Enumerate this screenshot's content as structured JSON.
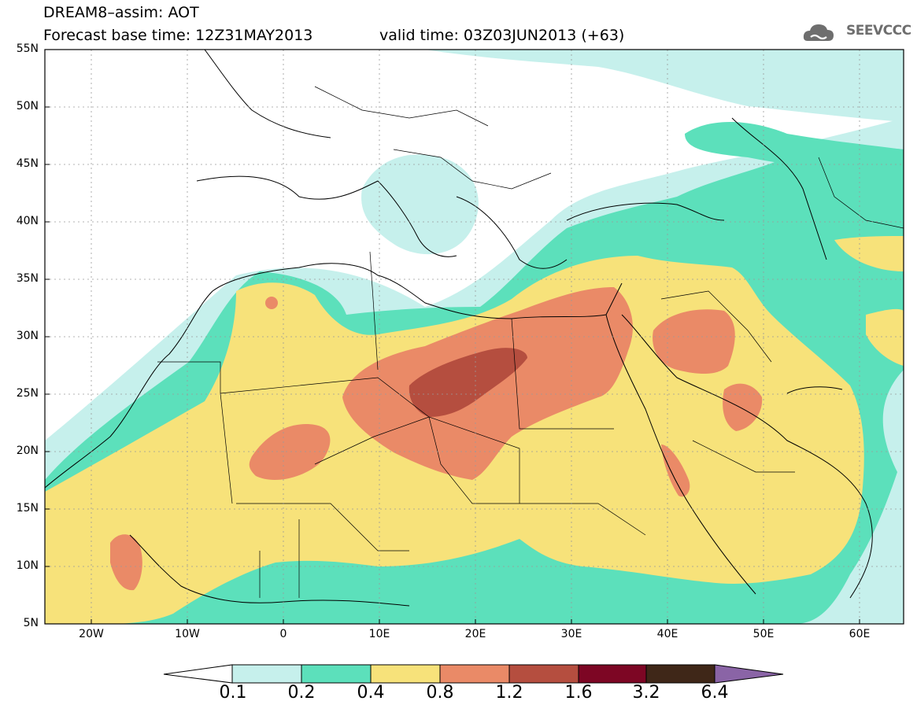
{
  "header": {
    "title": "DREAM8–assim: AOT",
    "base_time": "Forecast base time: 12Z31MAY2013",
    "valid_time": "valid time: 03Z03JUN2013 (+63)",
    "logo_text": "SEEVCCC"
  },
  "axes": {
    "lat_labels": [
      "55N",
      "50N",
      "45N",
      "40N",
      "35N",
      "30N",
      "25N",
      "20N",
      "15N",
      "10N",
      "5N"
    ],
    "lon_labels": [
      "20W",
      "10W",
      "0",
      "10E",
      "20E",
      "30E",
      "40E",
      "50E",
      "60E"
    ]
  },
  "colorbar": {
    "labels": [
      "0.1",
      "0.2",
      "0.4",
      "0.8",
      "1.2",
      "1.6",
      "3.2",
      "6.4"
    ],
    "colors": [
      "#ffffff",
      "#c6f0ec",
      "#5ce0bb",
      "#f7e27a",
      "#ea8a67",
      "#b54e3f",
      "#7d0624",
      "#3f2718",
      "#8a64a6"
    ]
  },
  "colors": {
    "aot_0_1_0_2": "#c6f0ec",
    "aot_0_2_0_4": "#5ce0bb",
    "aot_0_4_0_8": "#f7e27a",
    "aot_0_8_1_2": "#ea8a67",
    "aot_1_2_1_6": "#b54e3f"
  }
}
